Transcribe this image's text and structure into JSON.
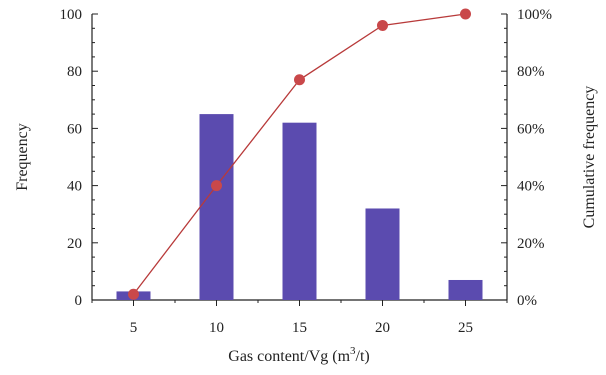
{
  "chart_data": {
    "type": "bar",
    "categories": [
      "5",
      "10",
      "15",
      "20",
      "25"
    ],
    "series": [
      {
        "type": "bar",
        "axis": "left",
        "values": [
          3,
          65,
          62,
          32,
          7
        ]
      },
      {
        "type": "line",
        "axis": "right",
        "values": [
          2,
          40,
          77,
          96,
          100
        ]
      }
    ],
    "xlabel": "Gas content/Vg (m3/t)",
    "xlabel_parts": {
      "main": "Gas content/Vg (m",
      "sup": "3",
      "tail": "/t)"
    },
    "ylabel": "Frequency",
    "y2label": "Cumulative frequency",
    "ylim": [
      0,
      100
    ],
    "y2lim": [
      0,
      100
    ],
    "yticks": [
      "0",
      "20",
      "40",
      "60",
      "80",
      "100"
    ],
    "y2ticks": [
      "0%",
      "20%",
      "40%",
      "60%",
      "80%",
      "100%"
    ],
    "grid": false,
    "colors": {
      "bar": "#5b4baf",
      "line": "#b83a3a",
      "marker": "#c9484a",
      "axis": "#222222"
    }
  }
}
